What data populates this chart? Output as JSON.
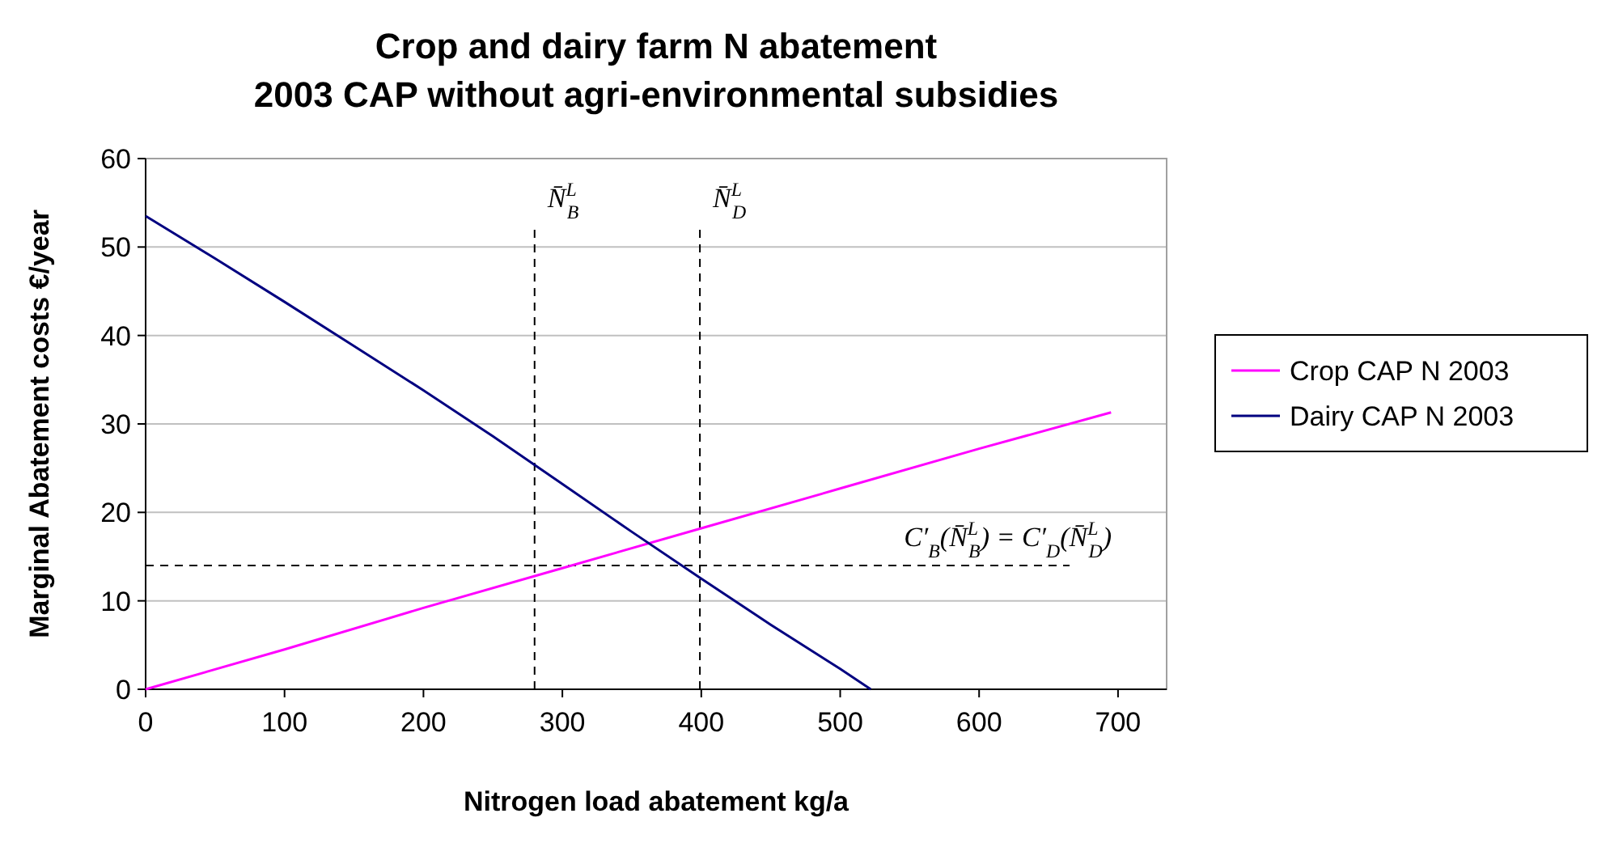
{
  "chart_data": {
    "type": "line",
    "title": "Crop and dairy farm N abatement\n2003 CAP without agri-environmental subsidies",
    "xlabel": "Nitrogen load abatement kg/a",
    "ylabel": "Marginal Abatement costs €/year",
    "xlim": [
      0,
      735
    ],
    "xticks": [
      0,
      100,
      200,
      300,
      400,
      500,
      600,
      700
    ],
    "ylim": [
      0,
      60
    ],
    "yticks": [
      0,
      10,
      20,
      30,
      40,
      50,
      60
    ],
    "grid": "y",
    "legend": "right",
    "marker": "none",
    "line_style": "solid",
    "series": [
      {
        "name": "Crop CAP N 2003",
        "color": "#ff00ff",
        "x": [
          0,
          100,
          200,
          300,
          400,
          500,
          600,
          695
        ],
        "values": [
          0,
          4.5,
          9.2,
          13.7,
          18.2,
          22.7,
          27.2,
          31.3
        ]
      },
      {
        "name": "Dairy CAP N 2003",
        "color": "#000080",
        "x": [
          0,
          50,
          100,
          150,
          200,
          250,
          300,
          350,
          400,
          450,
          500,
          522
        ],
        "values": [
          53.5,
          48.7,
          43.8,
          38.8,
          33.8,
          28.6,
          23.2,
          17.8,
          12.5,
          7.3,
          2.3,
          0
        ]
      }
    ],
    "ref_lines": [
      {
        "axis": "x",
        "value": 280,
        "label": "N̄$^{L}$$_{B}$",
        "line_style": "dashed",
        "color": "#000000"
      },
      {
        "axis": "x",
        "value": 399,
        "label": "N̄$^{L}$$_{D}$",
        "line_style": "dashed",
        "color": "#000000"
      },
      {
        "axis": "y",
        "value": 14,
        "label": "C′$_{B}$(N̄$^{L}$$_{B}$) = C′$_{D}$(N̄$^{L}$$_{D}$)",
        "line_style": "dashed",
        "color": "#000000"
      }
    ]
  }
}
